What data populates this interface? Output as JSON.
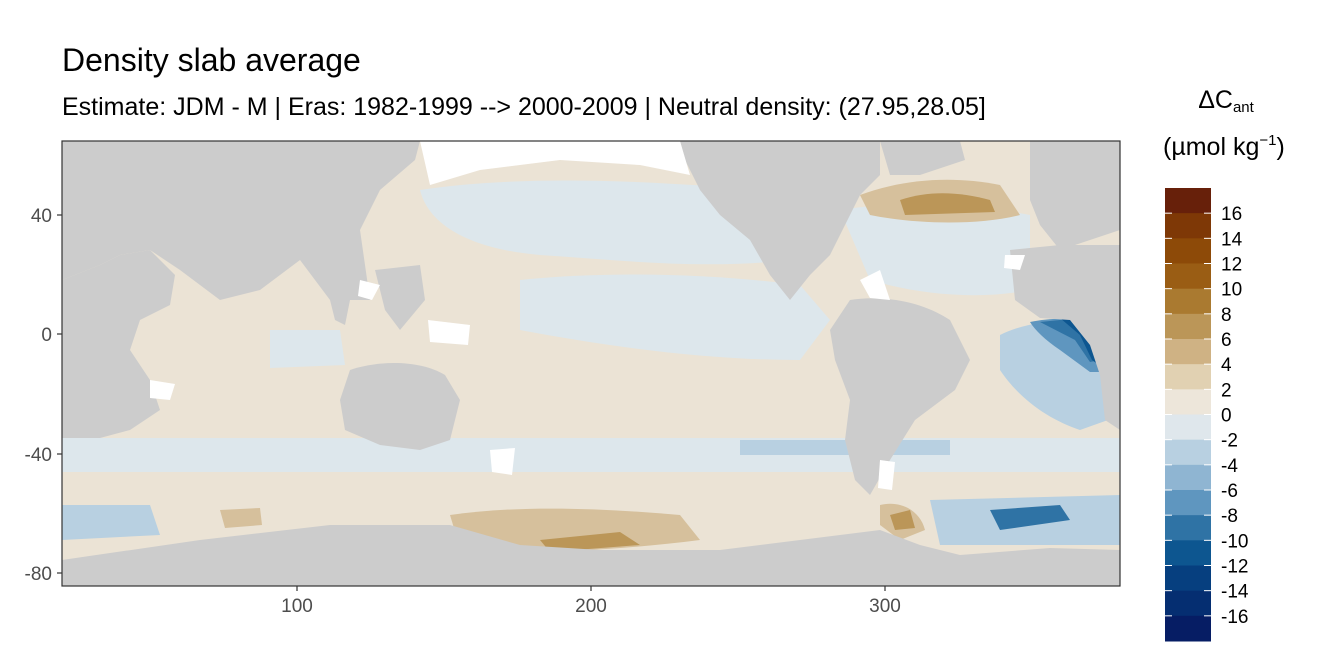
{
  "title": "Density slab average",
  "subtitle": "Estimate: JDM - M | Eras: 1982-1999 --> 2000-2009 | Neutral density: (27.95,28.05]",
  "legend": {
    "title_symbol": "ΔC",
    "title_subscript": "ant",
    "unit_prefix": "(µmol kg",
    "unit_superscript": "−1",
    "unit_suffix": ")",
    "labels": [
      "16",
      "14",
      "12",
      "10",
      "8",
      "6",
      "4",
      "2",
      "0",
      "-2",
      "-4",
      "-6",
      "-8",
      "-10",
      "-12",
      "-14",
      "-16"
    ],
    "colors": [
      "#67200a",
      "#7e3806",
      "#8d4a08",
      "#9a5d14",
      "#aa7a30",
      "#bb9658",
      "#cfb284",
      "#e1d1b2",
      "#ede6da",
      "#dfe7ec",
      "#b8d0e1",
      "#8fb5d2",
      "#5f96bf",
      "#2f73a5",
      "#0d5690",
      "#063f7f",
      "#052e71",
      "#061d64"
    ]
  },
  "axes": {
    "x_ticks": [
      "100",
      "200",
      "300"
    ],
    "y_ticks": [
      "40",
      "0",
      "-40",
      "-80"
    ],
    "xlim": [
      20,
      380
    ],
    "ylim": [
      -84,
      64
    ]
  },
  "colors": {
    "land": "#cccccc",
    "ocean_no_data": "#ffffff",
    "panel_border": "#333333"
  }
}
